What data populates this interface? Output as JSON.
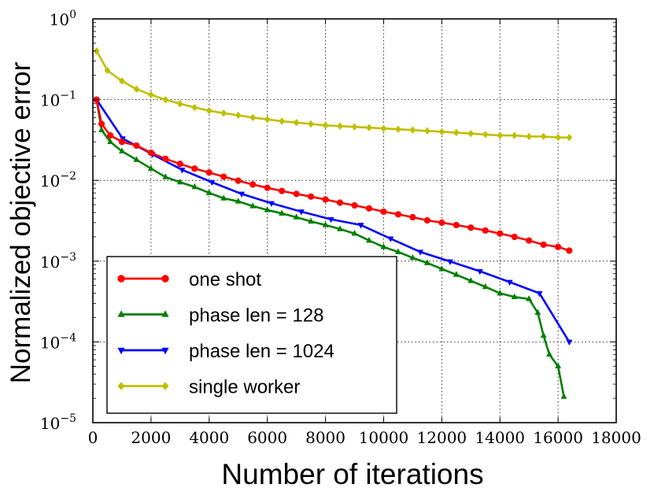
{
  "chart_data": {
    "type": "line",
    "title": "",
    "xlabel": "Number of iterations",
    "ylabel": "Normalized objective error",
    "xlim": [
      0,
      18000
    ],
    "ylim": [
      1e-05,
      1
    ],
    "yscale": "log",
    "grid": true,
    "legend_position": "lower-left",
    "x_ticks": [
      0,
      2000,
      4000,
      6000,
      8000,
      10000,
      12000,
      14000,
      16000,
      18000
    ],
    "x_tick_labels": [
      "0",
      "2000",
      "4000",
      "6000",
      "8000",
      "10000",
      "12000",
      "14000",
      "16000",
      "18000"
    ],
    "y_ticks": [
      1e-05,
      0.0001,
      0.001,
      0.01,
      0.1,
      1
    ],
    "y_tick_labels": [
      {
        "base": "10",
        "exp": "−5"
      },
      {
        "base": "10",
        "exp": "−4"
      },
      {
        "base": "10",
        "exp": "−3"
      },
      {
        "base": "10",
        "exp": "−2"
      },
      {
        "base": "10",
        "exp": "−1"
      },
      {
        "base": "10",
        "exp": "0"
      }
    ],
    "series": [
      {
        "name": "one shot",
        "color": "#ff0000",
        "marker": "circle",
        "x": [
          128,
          300,
          600,
          1000,
          1500,
          2000,
          2500,
          3000,
          3500,
          4000,
          4500,
          5000,
          5500,
          6000,
          6500,
          7000,
          7500,
          8000,
          8500,
          9000,
          9500,
          10000,
          10500,
          11000,
          11500,
          12000,
          12500,
          13000,
          13500,
          14000,
          14500,
          15000,
          15500,
          16000,
          16384
        ],
        "y": [
          0.1,
          0.05,
          0.036,
          0.03,
          0.027,
          0.022,
          0.0185,
          0.016,
          0.014,
          0.0125,
          0.0111,
          0.0099,
          0.0089,
          0.0081,
          0.0074,
          0.0068,
          0.0063,
          0.0058,
          0.0053,
          0.0049,
          0.0045,
          0.0041,
          0.0038,
          0.0035,
          0.0032,
          0.003,
          0.0028,
          0.0026,
          0.0024,
          0.0022,
          0.002,
          0.0018,
          0.0016,
          0.0015,
          0.00135
        ]
      },
      {
        "name": "phase len = 128",
        "color": "#008000",
        "marker": "triangle-up",
        "x": [
          128,
          300,
          600,
          1000,
          1500,
          2000,
          2500,
          3000,
          3500,
          4000,
          4500,
          5000,
          5500,
          6000,
          6500,
          7000,
          7500,
          8000,
          8500,
          9000,
          9500,
          10000,
          10500,
          11000,
          11500,
          12000,
          12500,
          13000,
          13500,
          14000,
          14500,
          15000,
          15300,
          15500,
          15700,
          16000,
          16200
        ],
        "y": [
          0.1,
          0.042,
          0.03,
          0.023,
          0.018,
          0.014,
          0.011,
          0.0095,
          0.0083,
          0.007,
          0.006,
          0.0055,
          0.0048,
          0.0043,
          0.0039,
          0.0035,
          0.0031,
          0.0028,
          0.0025,
          0.0022,
          0.0018,
          0.0015,
          0.0013,
          0.0011,
          0.00095,
          0.0008,
          0.00068,
          0.00057,
          0.00048,
          0.0004,
          0.00036,
          0.00034,
          0.00023,
          0.00012,
          7e-05,
          5e-05,
          2.1e-05
        ]
      },
      {
        "name": "phase len = 1024",
        "color": "#0000ff",
        "marker": "triangle-down",
        "x": [
          128,
          1024,
          2048,
          3072,
          4096,
          5120,
          6144,
          7168,
          8192,
          9216,
          10240,
          11264,
          12288,
          13312,
          14336,
          15360,
          16384
        ],
        "y": [
          0.1,
          0.033,
          0.021,
          0.0135,
          0.0095,
          0.0068,
          0.0052,
          0.0041,
          0.0033,
          0.0028,
          0.0019,
          0.0013,
          0.00099,
          0.00075,
          0.00055,
          0.0004,
          0.0001
        ]
      },
      {
        "name": "single worker",
        "color": "#bfbf00",
        "marker": "diamond",
        "x": [
          128,
          500,
          1000,
          1500,
          2000,
          2500,
          3000,
          3500,
          4000,
          4500,
          5000,
          5500,
          6000,
          6500,
          7000,
          7500,
          8000,
          8500,
          9000,
          9500,
          10000,
          10500,
          11000,
          11500,
          12000,
          12500,
          13000,
          13500,
          14000,
          14500,
          15000,
          15500,
          16000,
          16384
        ],
        "y": [
          0.4,
          0.23,
          0.17,
          0.135,
          0.115,
          0.1,
          0.089,
          0.08,
          0.073,
          0.068,
          0.064,
          0.06,
          0.057,
          0.054,
          0.052,
          0.05,
          0.048,
          0.047,
          0.046,
          0.045,
          0.044,
          0.043,
          0.042,
          0.041,
          0.04,
          0.039,
          0.038,
          0.037,
          0.036,
          0.036,
          0.035,
          0.035,
          0.034,
          0.034
        ]
      }
    ]
  }
}
